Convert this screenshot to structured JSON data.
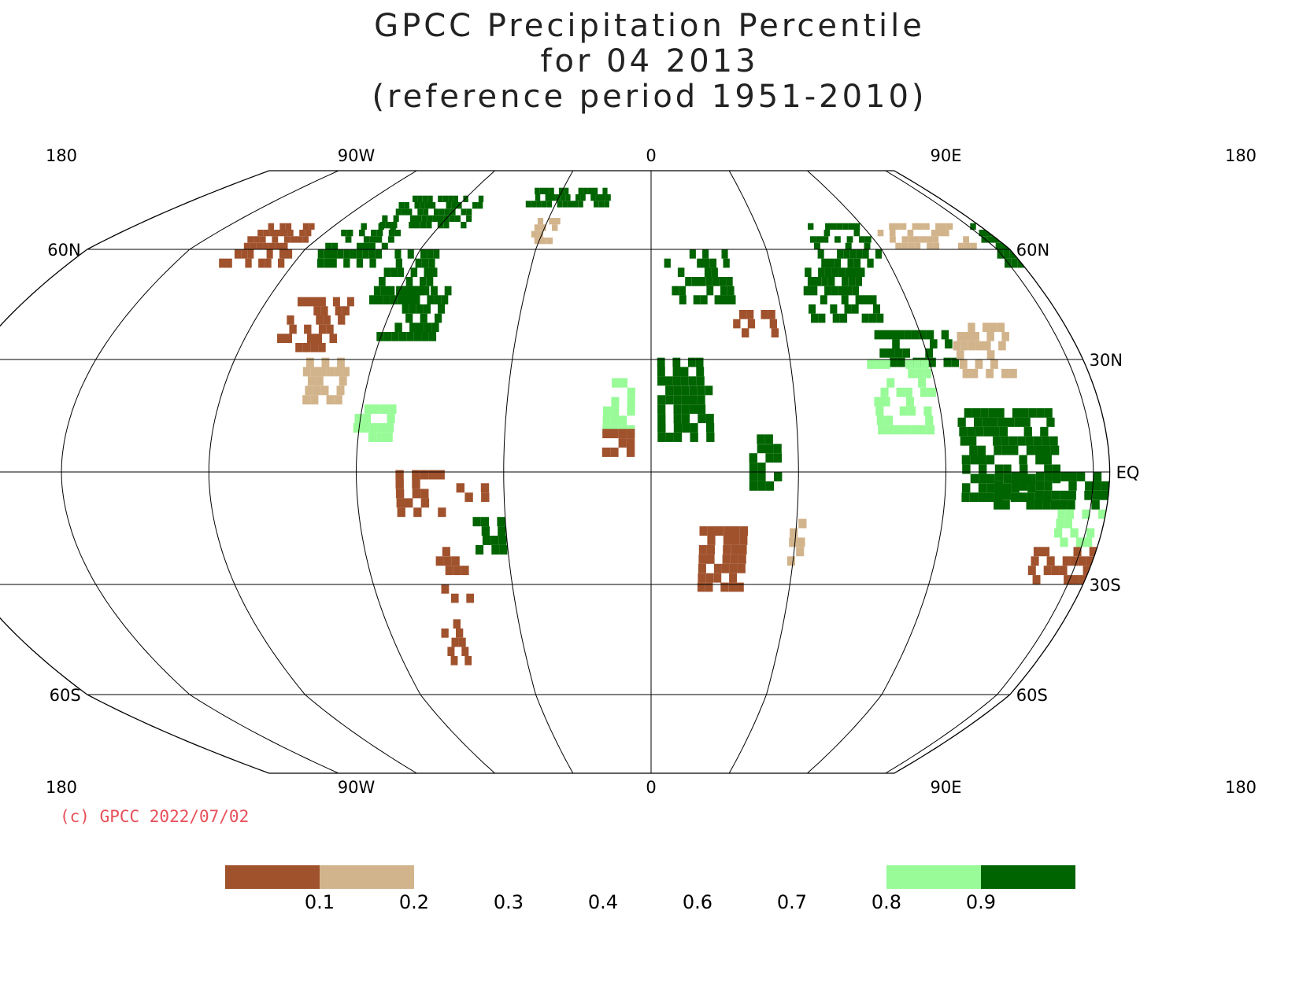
{
  "title": {
    "line1": "GPCC Precipitation Percentile",
    "line2": "for 04 2013",
    "line3": "(reference period 1951-2010)"
  },
  "credit": "(c) GPCC 2022/07/02",
  "map": {
    "projection": "Robinson",
    "lon_labels_top": [
      "180",
      "90W",
      "0",
      "90E",
      "180"
    ],
    "lon_labels_bottom": [
      "180",
      "90W",
      "0",
      "90E",
      "180"
    ],
    "lat_labels": [
      {
        "lat": 60,
        "left": "60N",
        "right": "60N"
      },
      {
        "lat": 30,
        "left": "30N",
        "right": "30N"
      },
      {
        "lat": 0,
        "left": "EQ",
        "right": "EQ"
      },
      {
        "lat": -30,
        "left": "30S",
        "right": "30S"
      },
      {
        "lat": -60,
        "left": "60S",
        "right": "60S"
      }
    ],
    "grid_lons": [
      -180,
      -135,
      -90,
      -45,
      0,
      45,
      90,
      135,
      180
    ],
    "central_meridian": 0,
    "lon_range": [
      -220,
      140
    ]
  },
  "legend": {
    "tick_labels": [
      "0.1",
      "0.2",
      "0.3",
      "0.4",
      "0.6",
      "0.7",
      "0.8",
      "0.9"
    ],
    "bins": [
      {
        "range": "<0.1",
        "color": "#a0522d"
      },
      {
        "range": "0.1-0.2",
        "color": "#d2b48c"
      },
      {
        "range": "0.2-0.8",
        "color": "none"
      },
      {
        "range": "0.8-0.9",
        "color": "#98fb98"
      },
      {
        "range": ">0.9",
        "color": "#006400"
      }
    ]
  },
  "colors": {
    "very_dry": "#a0522d",
    "dry": "#d2b48c",
    "wet": "#98fb98",
    "very_wet": "#006400",
    "credit": "#e8505a"
  },
  "regions": [
    {
      "name": "Alaska",
      "cls": "very_dry",
      "lat": [
        55,
        70
      ],
      "lon": [
        -165,
        -140
      ]
    },
    {
      "name": "Canada NW",
      "cls": "very_wet",
      "lat": [
        55,
        68
      ],
      "lon": [
        -130,
        -105
      ]
    },
    {
      "name": "Canada Arctic",
      "cls": "very_wet",
      "lat": [
        68,
        80
      ],
      "lon": [
        -120,
        -80
      ]
    },
    {
      "name": "Greenland",
      "cls": "very_wet",
      "lat": [
        76,
        82
      ],
      "lon": [
        -60,
        -20
      ]
    },
    {
      "name": "Greenland S",
      "cls": "dry",
      "lat": [
        62,
        70
      ],
      "lon": [
        -50,
        -40
      ]
    },
    {
      "name": "Hudson Bay",
      "cls": "very_wet",
      "lat": [
        45,
        60
      ],
      "lon": [
        -100,
        -80
      ]
    },
    {
      "name": "US East",
      "cls": "very_wet",
      "lat": [
        35,
        48
      ],
      "lon": [
        -92,
        -72
      ]
    },
    {
      "name": "US West",
      "cls": "very_dry",
      "lat": [
        32,
        45
      ],
      "lon": [
        -125,
        -105
      ]
    },
    {
      "name": "Mexico",
      "cls": "dry",
      "lat": [
        18,
        30
      ],
      "lon": [
        -112,
        -97
      ]
    },
    {
      "name": "Central America",
      "cls": "wet",
      "lat": [
        8,
        18
      ],
      "lon": [
        -92,
        -80
      ]
    },
    {
      "name": "Amazon W",
      "cls": "very_dry",
      "lat": [
        -12,
        0
      ],
      "lon": [
        -78,
        -65
      ]
    },
    {
      "name": "Amazon C",
      "cls": "very_dry",
      "lat": [
        -8,
        -3
      ],
      "lon": [
        -62,
        -50
      ]
    },
    {
      "name": "Brazil",
      "cls": "very_wet",
      "lat": [
        -22,
        -12
      ],
      "lon": [
        -55,
        -45
      ]
    },
    {
      "name": "Argentina",
      "cls": "very_dry",
      "lat": [
        -35,
        -20
      ],
      "lon": [
        -68,
        -60
      ]
    },
    {
      "name": "Patagonia",
      "cls": "very_dry",
      "lat": [
        -52,
        -40
      ],
      "lon": [
        -72,
        -65
      ]
    },
    {
      "name": "Sahara Green",
      "cls": "very_wet",
      "lat": [
        8,
        30
      ],
      "lon": [
        2,
        18
      ]
    },
    {
      "name": "Sahel W",
      "cls": "wet",
      "lat": [
        10,
        25
      ],
      "lon": [
        -15,
        -5
      ]
    },
    {
      "name": "West Africa coast",
      "cls": "very_dry",
      "lat": [
        4,
        10
      ],
      "lon": [
        -15,
        -5
      ]
    },
    {
      "name": "East Africa",
      "cls": "very_wet",
      "lat": [
        -5,
        10
      ],
      "lon": [
        30,
        40
      ]
    },
    {
      "name": "Southern Africa",
      "cls": "very_dry",
      "lat": [
        -32,
        -15
      ],
      "lon": [
        15,
        28
      ]
    },
    {
      "name": "Madagascar",
      "cls": "dry",
      "lat": [
        -25,
        -14
      ],
      "lon": [
        43,
        49
      ]
    },
    {
      "name": "Europe",
      "cls": "very_wet",
      "lat": [
        45,
        60
      ],
      "lon": [
        5,
        30
      ]
    },
    {
      "name": "Turkey",
      "cls": "very_dry",
      "lat": [
        36,
        42
      ],
      "lon": [
        28,
        42
      ]
    },
    {
      "name": "Central Asia",
      "cls": "very_wet",
      "lat": [
        40,
        55
      ],
      "lon": [
        55,
        80
      ]
    },
    {
      "name": "Siberia W",
      "cls": "very_wet",
      "lat": [
        55,
        70
      ],
      "lon": [
        65,
        90
      ]
    },
    {
      "name": "Siberia C",
      "cls": "dry",
      "lat": [
        60,
        70
      ],
      "lon": [
        95,
        130
      ]
    },
    {
      "name": "Siberia E",
      "cls": "very_wet",
      "lat": [
        55,
        68
      ],
      "lon": [
        135,
        165
      ]
    },
    {
      "name": "Tibet",
      "cls": "very_wet",
      "lat": [
        28,
        36
      ],
      "lon": [
        75,
        100
      ]
    },
    {
      "name": "China",
      "cls": "dry",
      "lat": [
        25,
        40
      ],
      "lon": [
        100,
        120
      ]
    },
    {
      "name": "India",
      "cls": "wet",
      "lat": [
        10,
        28
      ],
      "lon": [
        70,
        88
      ]
    },
    {
      "name": "SE Asia",
      "cls": "very_wet",
      "lat": [
        -8,
        15
      ],
      "lon": [
        95,
        125
      ]
    },
    {
      "name": "Indonesia",
      "cls": "very_wet",
      "lat": [
        -10,
        0
      ],
      "lon": [
        105,
        140
      ]
    },
    {
      "name": "Australia N",
      "cls": "wet",
      "lat": [
        -20,
        -12
      ],
      "lon": [
        125,
        145
      ]
    },
    {
      "name": "Australia C",
      "cls": "very_dry",
      "lat": [
        -30,
        -22
      ],
      "lon": [
        120,
        140
      ]
    },
    {
      "name": "Australia SE",
      "cls": "dry",
      "lat": [
        -38,
        -28
      ],
      "lon": [
        140,
        152
      ]
    },
    {
      "name": "New Zealand",
      "cls": "very_wet",
      "lat": [
        -46,
        -36
      ],
      "lon": [
        168,
        178
      ]
    }
  ]
}
